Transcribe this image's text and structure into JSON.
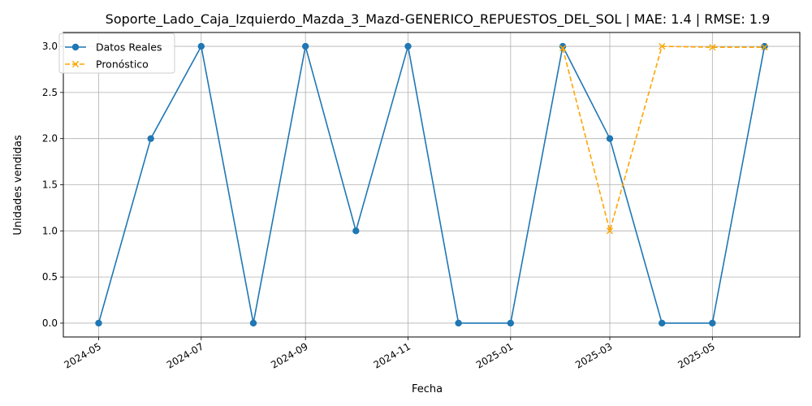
{
  "chart_data": {
    "type": "line",
    "title": "Soporte_Lado_Caja_Izquierdo_Mazda_3_Mazd-GENERICO_REPUESTOS_DEL_SOL | MAE: 1.4 | RMSE: 1.9",
    "xlabel": "Fecha",
    "ylabel": "Unidades vendidas",
    "xlim": [
      "2024-04-10",
      "2025-06-22"
    ],
    "ylim": [
      -0.15,
      3.15
    ],
    "grid": true,
    "legend_position": "top-left",
    "x_ticks": [
      "2024-05-01",
      "2024-07-01",
      "2024-09-01",
      "2024-11-01",
      "2025-01-01",
      "2025-03-01",
      "2025-05-01"
    ],
    "x_tick_labels": [
      "2024-05",
      "2024-07",
      "2024-09",
      "2024-11",
      "2025-01",
      "2025-03",
      "2025-05"
    ],
    "y_ticks": [
      0.0,
      0.5,
      1.0,
      1.5,
      2.0,
      2.5,
      3.0
    ],
    "y_tick_labels": [
      "0.0",
      "0.5",
      "1.0",
      "1.5",
      "2.0",
      "2.5",
      "3.0"
    ],
    "series": [
      {
        "name": "Datos Reales",
        "color": "#1f77b4",
        "style": "solid",
        "marker": "circle",
        "x": [
          "2024-05-01",
          "2024-06-01",
          "2024-07-01",
          "2024-08-01",
          "2024-09-01",
          "2024-10-01",
          "2024-11-01",
          "2024-12-01",
          "2025-01-01",
          "2025-02-01",
          "2025-03-01",
          "2025-04-01",
          "2025-05-01",
          "2025-06-01"
        ],
        "y": [
          0,
          2,
          3,
          0,
          3,
          1,
          3,
          0,
          0,
          3,
          2,
          0,
          0,
          3
        ]
      },
      {
        "name": "Pronóstico",
        "color": "#ffa500",
        "style": "dashed",
        "marker": "x",
        "x": [
          "2025-02-01",
          "2025-03-01",
          "2025-04-01",
          "2025-05-01",
          "2025-06-01"
        ],
        "y": [
          2.98,
          1.0,
          3.0,
          2.99,
          2.99
        ]
      }
    ]
  }
}
